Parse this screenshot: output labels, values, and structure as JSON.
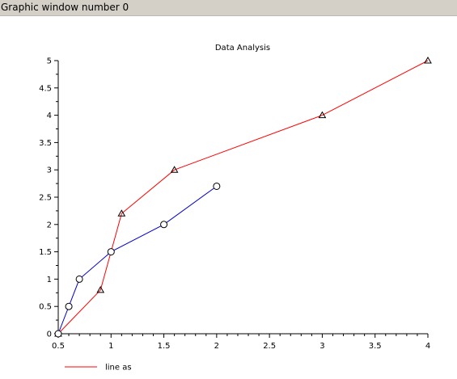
{
  "window": {
    "title": "Graphic window number 0"
  },
  "chart_data": {
    "type": "line",
    "title": "Data Analysis",
    "xlabel": "",
    "ylabel": "",
    "xlim": [
      0.5,
      4
    ],
    "ylim": [
      0,
      5
    ],
    "xticks": [
      0.5,
      1,
      1.5,
      2,
      2.5,
      3,
      3.5,
      4
    ],
    "xtick_labels": [
      "0.5",
      "1",
      "1.5",
      "2",
      "2.5",
      "3",
      "3.5",
      "4"
    ],
    "yticks": [
      0,
      0.5,
      1,
      1.5,
      2,
      2.5,
      3,
      3.5,
      4,
      4.5,
      5
    ],
    "ytick_labels": [
      "0",
      "0.5",
      "1",
      "1.5",
      "2",
      "2.5",
      "3",
      "3.5",
      "4",
      "4.5",
      "5"
    ],
    "grid": false,
    "legend_position": "bottom-left",
    "series": [
      {
        "name": "line as",
        "color": "#ff0000",
        "marker": "triangle",
        "x": [
          0.5,
          0.9,
          1.1,
          1.6,
          3,
          4
        ],
        "y": [
          0,
          0.8,
          2.2,
          3,
          4,
          5
        ]
      },
      {
        "color": "#0000cc",
        "marker": "circle",
        "x": [
          0.5,
          0.6,
          0.7,
          1,
          1.5,
          2
        ],
        "y": [
          0,
          0.5,
          1,
          1.5,
          2,
          2.7
        ]
      }
    ]
  }
}
